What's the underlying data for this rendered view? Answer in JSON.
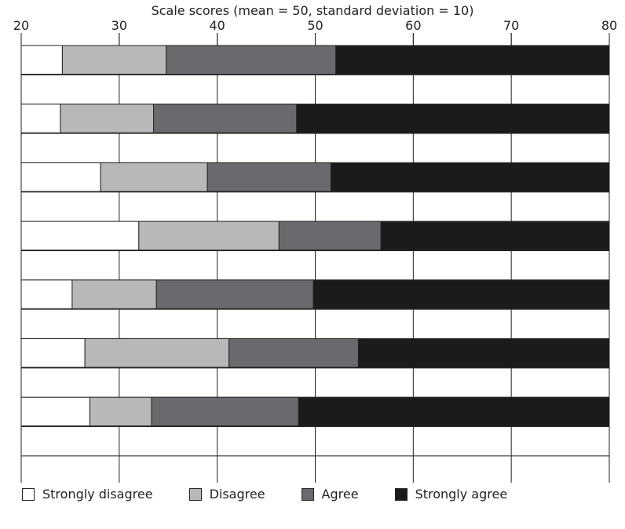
{
  "chart_data": {
    "type": "bar",
    "orientation": "horizontal",
    "stacked": true,
    "title": "Scale scores (mean = 50, standard deviation = 10)",
    "xlabel": "",
    "ylabel": "",
    "xlim": [
      20,
      80
    ],
    "xticks": [
      20,
      30,
      40,
      50,
      60,
      70,
      80
    ],
    "grid": true,
    "legend_position": "bottom",
    "series": [
      {
        "name": "Strongly disagree",
        "color": "#ffffff"
      },
      {
        "name": "Disagree",
        "color": "#b8b8bb"
      },
      {
        "name": "Agree",
        "color": "#6a6a6e"
      },
      {
        "name": "Strongly agree",
        "color": "#1c1a1a"
      }
    ],
    "boundaries": [
      [
        24.2,
        34.8,
        52.1
      ],
      [
        24.0,
        33.5,
        48.1
      ],
      [
        28.1,
        39.0,
        51.6
      ],
      [
        32.0,
        46.3,
        56.7
      ],
      [
        25.2,
        33.8,
        49.8
      ],
      [
        26.5,
        41.2,
        54.4
      ],
      [
        27.0,
        33.3,
        48.3
      ]
    ]
  }
}
